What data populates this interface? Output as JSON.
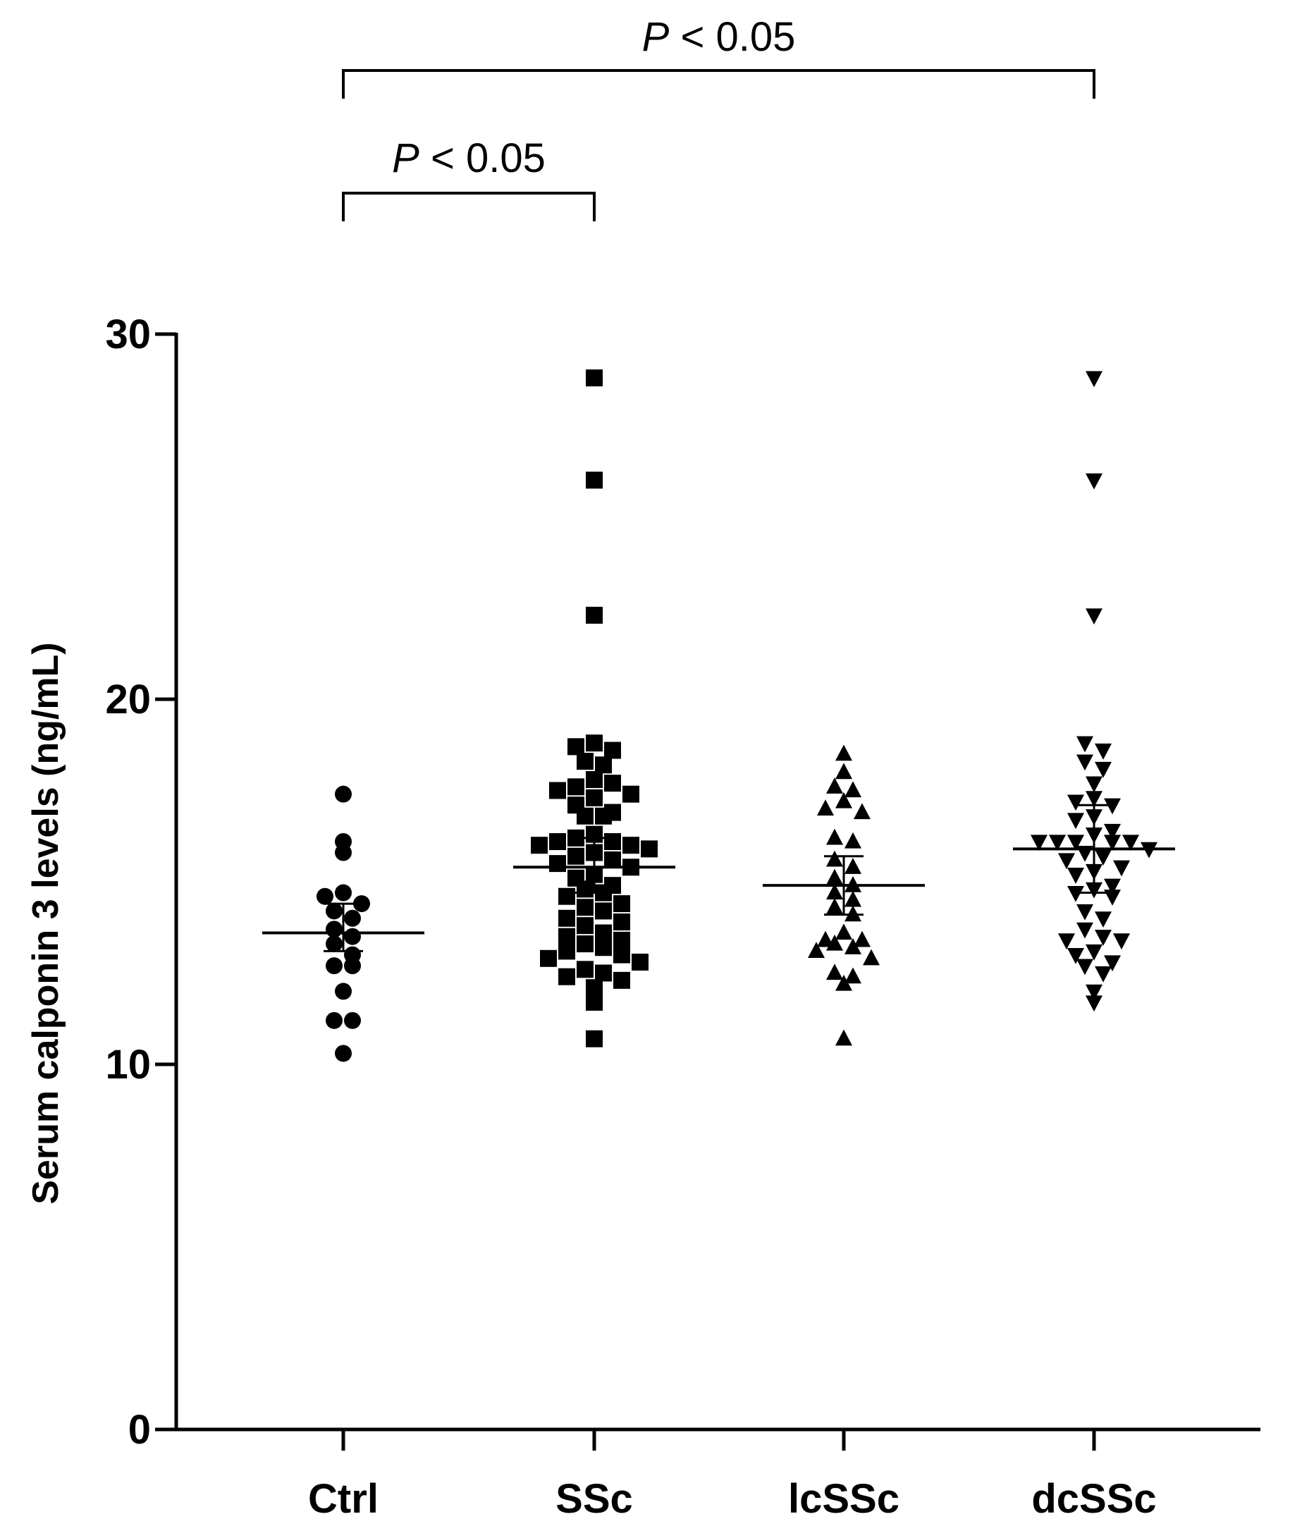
{
  "chart_data": {
    "type": "scatter",
    "title": "",
    "xlabel": "",
    "ylabel": "Serum calponin 3 levels (ng/mL)",
    "ylim": [
      0,
      30
    ],
    "yticks": [
      "0",
      "10",
      "20",
      "30"
    ],
    "ytick_values": [
      0,
      10,
      20,
      30
    ],
    "grid": false,
    "categories": [
      "Ctrl",
      "SSc",
      "lcSSc",
      "dcSSc"
    ],
    "marker_shapes": [
      "circle",
      "square",
      "triangle-up",
      "triangle-down"
    ],
    "marker_color": "#000000",
    "series": [
      {
        "category": "Ctrl",
        "values": [
          17.4,
          16.1,
          15.8,
          14.7,
          14.6,
          14.4,
          14.2,
          14.0,
          13.7,
          13.5,
          13.3,
          13.0,
          12.7,
          12.7,
          12.0,
          11.2,
          11.2,
          10.3
        ],
        "mean": 13.6,
        "error": [
          13.1,
          14.4
        ]
      },
      {
        "category": "SSc",
        "values": [
          28.8,
          26.0,
          22.3,
          18.8,
          18.7,
          18.6,
          18.3,
          18.2,
          17.8,
          17.6,
          17.7,
          17.5,
          17.4,
          17.3,
          17.1,
          16.9,
          16.8,
          16.8,
          16.3,
          16.2,
          16.1,
          16.1,
          16.0,
          16.0,
          15.9,
          15.8,
          15.7,
          15.6,
          15.5,
          15.4,
          15.2,
          15.1,
          14.9,
          14.8,
          14.7,
          14.6,
          14.4,
          14.3,
          14.2,
          14.0,
          13.9,
          13.8,
          13.6,
          13.5,
          13.4,
          13.3,
          13.2,
          13.1,
          13.0,
          12.9,
          12.8,
          12.6,
          12.5,
          12.4,
          12.3,
          12.1,
          11.7,
          10.7
        ],
        "mean": 15.4,
        "error": [
          14.7,
          16.2
        ]
      },
      {
        "category": "lcSSc",
        "values": [
          18.5,
          18.0,
          17.6,
          17.5,
          17.2,
          17.0,
          16.9,
          16.2,
          16.1,
          15.6,
          15.4,
          15.1,
          14.9,
          14.7,
          14.5,
          14.3,
          14.1,
          13.6,
          13.4,
          13.4,
          13.3,
          13.2,
          13.1,
          12.9,
          12.5,
          12.4,
          12.2,
          10.7
        ],
        "mean": 14.9,
        "error": [
          14.1,
          15.7
        ]
      },
      {
        "category": "dcSSc",
        "values": [
          28.8,
          26.0,
          22.3,
          18.8,
          18.6,
          18.3,
          18.1,
          17.7,
          17.3,
          17.2,
          17.1,
          16.8,
          16.7,
          16.4,
          16.3,
          16.1,
          16.1,
          16.1,
          16.1,
          16.1,
          15.9,
          15.8,
          15.7,
          15.6,
          15.4,
          15.3,
          15.2,
          14.9,
          14.8,
          14.7,
          14.6,
          14.2,
          14.0,
          13.7,
          13.5,
          13.4,
          13.4,
          13.1,
          13.0,
          12.8,
          12.7,
          12.5,
          12.0,
          11.7
        ],
        "mean": 15.9,
        "error": [
          14.7,
          17.1
        ]
      }
    ],
    "comparisons": [
      {
        "from": "Ctrl",
        "to": "dcSSc",
        "label": "P < 0.05"
      },
      {
        "from": "Ctrl",
        "to": "SSc",
        "label": "P < 0.05"
      }
    ]
  }
}
